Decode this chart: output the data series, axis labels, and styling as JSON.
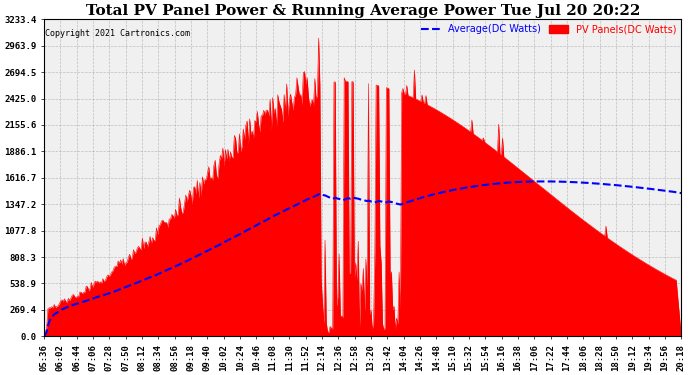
{
  "title": "Total PV Panel Power & Running Average Power Tue Jul 20 20:22",
  "copyright": "Copyright 2021 Cartronics.com",
  "legend_avg": "Average(DC Watts)",
  "legend_pv": "PV Panels(DC Watts)",
  "avg_color": "#0000ff",
  "pv_color": "#ff0000",
  "pv_fill_color": "#ff0000",
  "background_color": "#ffffff",
  "plot_background": "#f0f0f0",
  "grid_color": "#aaaaaa",
  "yticks": [
    0.0,
    269.4,
    538.9,
    808.3,
    1077.8,
    1347.2,
    1616.7,
    1886.1,
    2155.6,
    2425.0,
    2694.5,
    2963.9,
    3233.4
  ],
  "ymax": 3233.4,
  "xtick_labels": [
    "05:36",
    "06:02",
    "06:44",
    "07:06",
    "07:28",
    "07:50",
    "08:12",
    "08:34",
    "08:56",
    "09:18",
    "09:40",
    "10:02",
    "10:24",
    "10:46",
    "11:08",
    "11:30",
    "11:52",
    "12:14",
    "12:36",
    "12:58",
    "13:20",
    "13:42",
    "14:04",
    "14:26",
    "14:48",
    "15:10",
    "15:32",
    "15:54",
    "16:16",
    "16:38",
    "17:06",
    "17:22",
    "17:44",
    "18:06",
    "18:28",
    "18:50",
    "19:12",
    "19:34",
    "19:56",
    "20:18"
  ],
  "title_fontsize": 11,
  "tick_fontsize": 6.5
}
